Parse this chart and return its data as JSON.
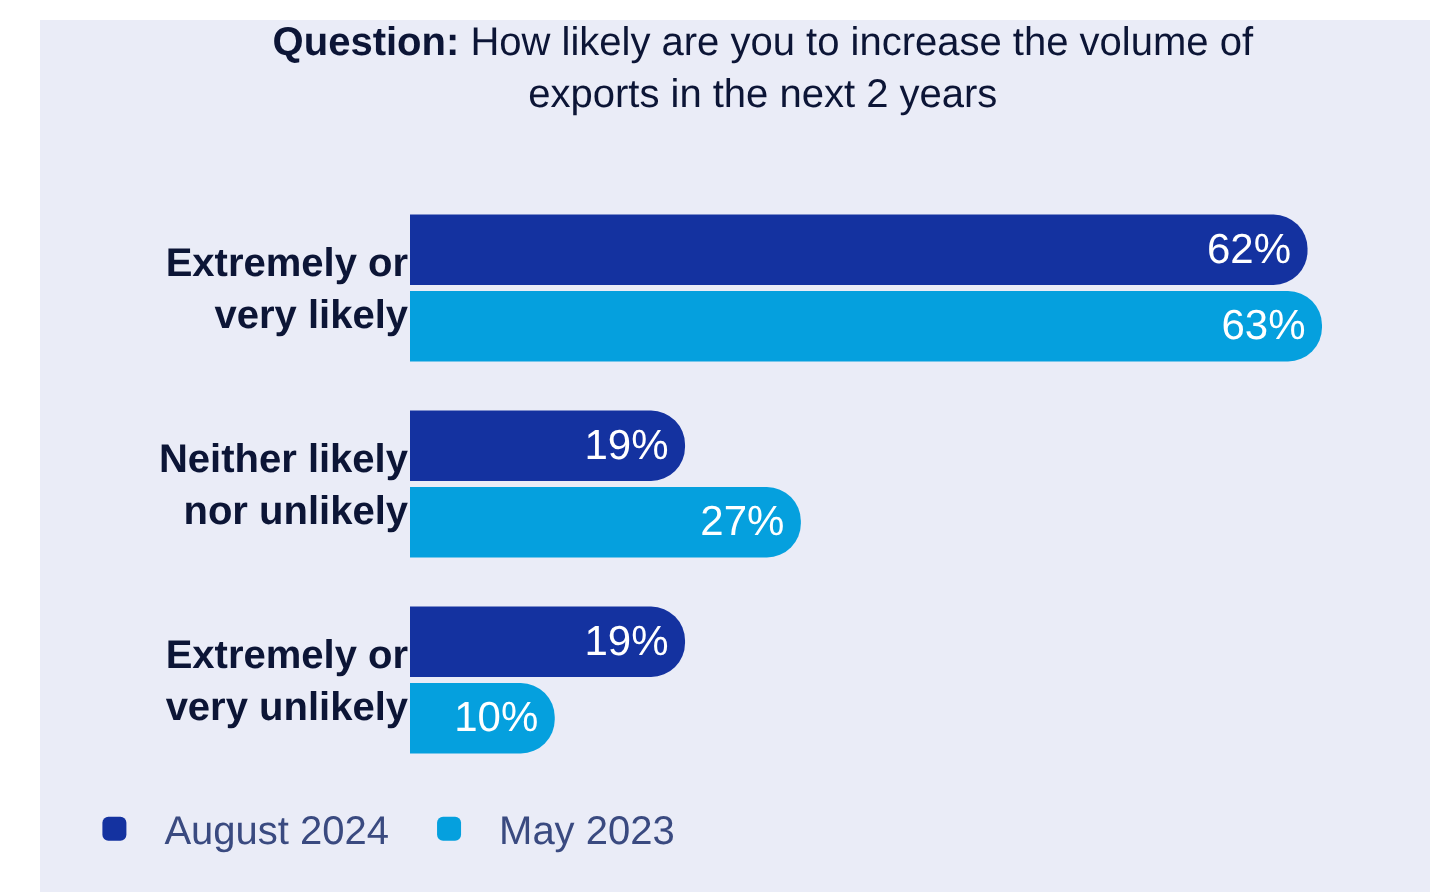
{
  "chart_data": {
    "type": "bar",
    "orientation": "horizontal",
    "title": "Question: How likely are you to increase the volume of exports in the next 2 years",
    "categories": [
      "Extremely or very likely",
      "Neither likely nor unlikely",
      "Extremely or very unlikely"
    ],
    "series": [
      {
        "name": "August 2024",
        "color": "#1432a0",
        "values": [
          62,
          19,
          19
        ],
        "value_labels": [
          "62%",
          "19%",
          "19%"
        ]
      },
      {
        "name": "May 2023",
        "color": "#05a0de",
        "values": [
          63,
          27,
          10
        ],
        "value_labels": [
          "63%",
          "27%",
          "10%"
        ]
      }
    ],
    "legend": "bottom left"
  }
}
